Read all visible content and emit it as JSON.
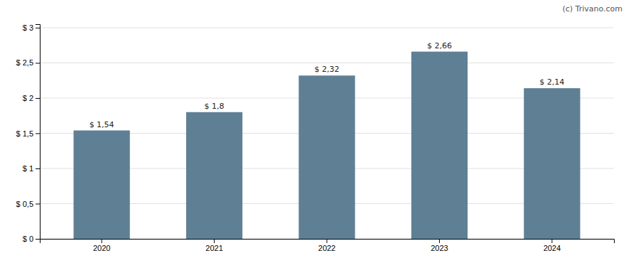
{
  "chart_data": {
    "type": "bar",
    "categories": [
      "2020",
      "2021",
      "2022",
      "2023",
      "2024"
    ],
    "values": [
      1.54,
      1.8,
      2.32,
      2.66,
      2.14
    ],
    "value_labels": [
      "$ 1,54",
      "$ 1,8",
      "$ 2,32",
      "$ 2,66",
      "$ 2,14"
    ],
    "data_labels": true,
    "color": "#5f7f94",
    "ylim": [
      0,
      3.05
    ],
    "yticks": [
      {
        "value": 0,
        "label": "$ 0"
      },
      {
        "value": 0.5,
        "label": "$ 0,5"
      },
      {
        "value": 1.0,
        "label": "$ 1"
      },
      {
        "value": 1.5,
        "label": "$ 1,5"
      },
      {
        "value": 2.0,
        "label": "$ 2"
      },
      {
        "value": 2.5,
        "label": "$ 2,5"
      },
      {
        "value": 3.0,
        "label": "$ 3"
      }
    ],
    "grid": true,
    "annotations": [
      "(c) Trivano.com"
    ]
  }
}
